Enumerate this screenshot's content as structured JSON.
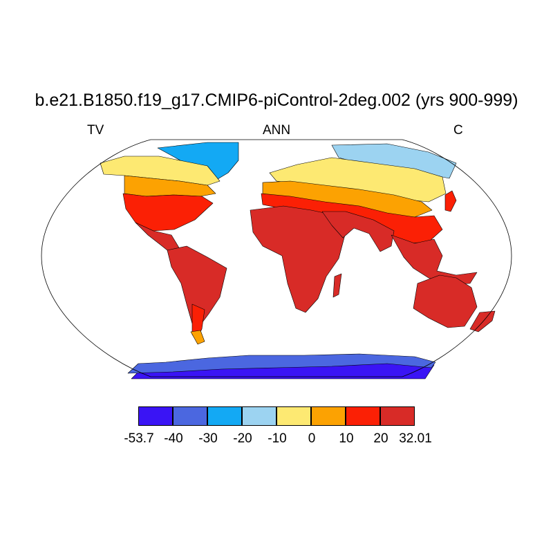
{
  "title": "b.e21.B1850.f19_g17.CMIP6-piControl-2deg.002 (yrs 900-999)",
  "left_label": "TV",
  "center_label": "ANN",
  "right_label": "C",
  "colorbar": {
    "colors": [
      "#3a14f5",
      "#4b67e0",
      "#13a9f4",
      "#9cd3f1",
      "#fde972",
      "#fca202",
      "#fb2005",
      "#d82b27"
    ],
    "tick_labels": [
      "-53.7",
      "-40",
      "-30",
      "-20",
      "-10",
      "0",
      "10",
      "20",
      "32.01"
    ]
  },
  "map": {
    "projection": "robinson",
    "ocean_color": "#ffffff",
    "regions": [
      {
        "name": "antarctica",
        "color": "#3a14f5"
      },
      {
        "name": "antarctica-coast",
        "color": "#4b67e0"
      },
      {
        "name": "greenland",
        "color": "#13a9f4"
      },
      {
        "name": "siberia-arctic",
        "color": "#9cd3f1"
      },
      {
        "name": "canada-north",
        "color": "#fde972"
      },
      {
        "name": "eurasia-north",
        "color": "#fde972"
      },
      {
        "name": "canada-south",
        "color": "#fca202"
      },
      {
        "name": "eurasia-mid",
        "color": "#fca202"
      },
      {
        "name": "usa",
        "color": "#fb2005"
      },
      {
        "name": "europe-asia-south",
        "color": "#fb2005"
      },
      {
        "name": "mexico-central-america",
        "color": "#d82b27"
      },
      {
        "name": "south-america",
        "color": "#d82b27"
      },
      {
        "name": "africa",
        "color": "#d82b27"
      },
      {
        "name": "middle-east-india",
        "color": "#d82b27"
      },
      {
        "name": "southeast-asia",
        "color": "#d82b27"
      },
      {
        "name": "australia",
        "color": "#d82b27"
      },
      {
        "name": "patagonia",
        "color": "#fb2005"
      },
      {
        "name": "tierra-del-fuego",
        "color": "#fca202"
      },
      {
        "name": "new-zealand",
        "color": "#d82b27"
      },
      {
        "name": "madagascar",
        "color": "#d82b27"
      },
      {
        "name": "japan",
        "color": "#fb2005"
      }
    ]
  }
}
